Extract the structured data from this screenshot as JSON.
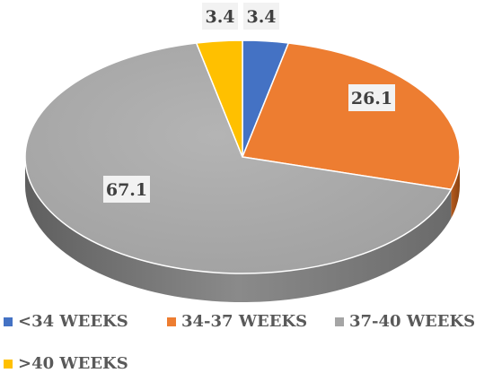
{
  "chart_data": {
    "type": "pie",
    "title": "",
    "categories": [
      "<34 WEEKS",
      "34-37 WEEKS",
      "37-40 WEEKS",
      ">40 WEEKS"
    ],
    "values": [
      3.4,
      26.1,
      67.1,
      3.4
    ],
    "value_labels": [
      "3.4",
      "26.1",
      "67.1",
      "3.4"
    ],
    "colors": [
      "#4472C4",
      "#ED7D31",
      "#A5A5A5",
      "#FFC000"
    ],
    "style": "3d",
    "legend_position": "bottom"
  }
}
